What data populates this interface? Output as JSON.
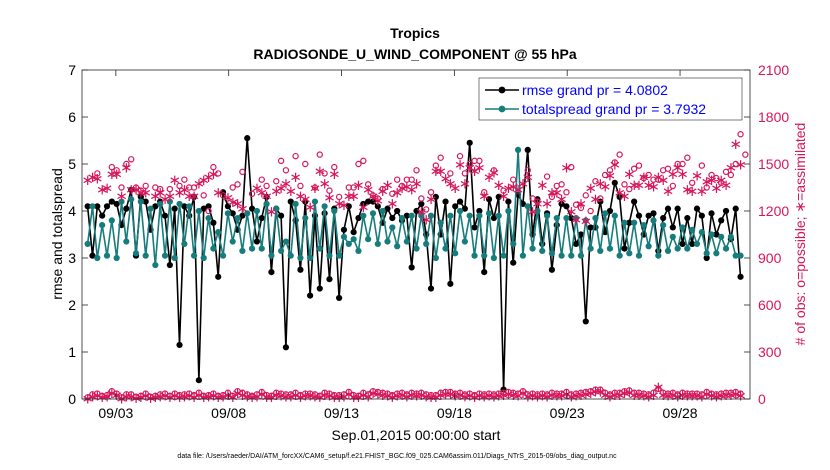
{
  "chart_data": {
    "type": "line",
    "title": "Tropics",
    "subtitle": "RADIOSONDE_U_WIND_COMPONENT @ 55 hPa",
    "xlabel": "Sep.01,2015 00:00:00 start",
    "ylabel_left": "rmse and totalspread",
    "ylabel_right": "# of obs: o=possible; ∗=assimilated",
    "ylim_left": [
      0,
      7
    ],
    "yticks_left": [
      "0",
      "1",
      "2",
      "3",
      "4",
      "5",
      "6",
      "7"
    ],
    "ylim_right": [
      0,
      2100
    ],
    "yticks_right": [
      "0",
      "300",
      "600",
      "900",
      "1200",
      "1500",
      "1800",
      "2100"
    ],
    "xlim": [
      1.5,
      31.1
    ],
    "xticks": [
      {
        "day": 3,
        "label": "09/03"
      },
      {
        "day": 8,
        "label": "09/08"
      },
      {
        "day": 13,
        "label": "09/13"
      },
      {
        "day": 18,
        "label": "09/18"
      },
      {
        "day": 23,
        "label": "09/23"
      },
      {
        "day": 28,
        "label": "09/28"
      }
    ],
    "grid": false,
    "legend_position": "top-right",
    "series": [
      {
        "name": "rmse grand pr = 4.0802",
        "axis": "left",
        "color": "#000000",
        "values": [
          4.1,
          3.05,
          4.1,
          3.9,
          4.1,
          4.2,
          4.15,
          3.7,
          4.05,
          4.45,
          3.05,
          4.3,
          4.2,
          3.6,
          4.1,
          4.2,
          3.9,
          2.85,
          4.05,
          1.15,
          4.1,
          3.9,
          4.3,
          0.4,
          4.05,
          4.1,
          3.75,
          2.6,
          4.4,
          4.1,
          3.95,
          3.6,
          3.9,
          5.55,
          4.05,
          3.35,
          3.85,
          4.3,
          2.7,
          4.05,
          3.9,
          1.1,
          4.2,
          3.8,
          2.75,
          4.2,
          2.2,
          3.9,
          2.35,
          3.95,
          2.55,
          4.05,
          2.15,
          3.6,
          4.1,
          3.55,
          3.85,
          4.15,
          4.2,
          4.2,
          4.1,
          3.75,
          4.05,
          3.85,
          4.0,
          3.8,
          3.9,
          2.8,
          4.0,
          4.15,
          3.5,
          2.35,
          4.3,
          3.5,
          4.2,
          2.45,
          4.1,
          4.2,
          4.05,
          5.45,
          3.65,
          4.0,
          2.7,
          4.25,
          3.85,
          4.3,
          0.2,
          4.2,
          2.9,
          4.35,
          4.15,
          5.3,
          3.5,
          4.25,
          3.3,
          3.95,
          2.75,
          3.7,
          4.15,
          4.1,
          3.85,
          3.3,
          3.5,
          1.65,
          3.65,
          3.65,
          4.2,
          3.55,
          4.0,
          4.6,
          4.3,
          3.2,
          3.75,
          4.2,
          3.9,
          3.5,
          3.9,
          3.95,
          3.15,
          3.85,
          4.05,
          3.65,
          4.05,
          3.3,
          3.85,
          3.3,
          4.05,
          3.9,
          3.0,
          3.95,
          3.5,
          3.8,
          4.0,
          3.4,
          4.05,
          2.6
        ],
        "marker": "o"
      },
      {
        "name": "totalspread grand pr = 3.7932",
        "axis": "left",
        "color": "#167c7c",
        "values": [
          3.3,
          4.1,
          3.0,
          3.7,
          3.05,
          3.8,
          3.0,
          4.2,
          3.35,
          4.25,
          3.1,
          4.2,
          3.05,
          4.05,
          2.85,
          4.15,
          3.05,
          4.2,
          3.0,
          4.15,
          3.3,
          4.1,
          3.05,
          4.0,
          3.0,
          3.85,
          3.2,
          3.55,
          3.05,
          3.95,
          3.35,
          3.85,
          3.15,
          3.95,
          3.2,
          4.0,
          3.2,
          4.15,
          3.05,
          4.05,
          3.15,
          3.35,
          3.05,
          4.15,
          3.0,
          3.85,
          3.0,
          4.2,
          3.2,
          4.1,
          3.05,
          4.0,
          3.05,
          3.45,
          3.3,
          3.4,
          3.15,
          3.9,
          3.4,
          3.95,
          3.3,
          4.0,
          3.35,
          3.65,
          3.25,
          3.85,
          3.35,
          3.9,
          3.2,
          3.9,
          3.3,
          3.9,
          3.0,
          3.75,
          3.2,
          3.9,
          3.1,
          4.0,
          3.35,
          3.9,
          3.05,
          3.9,
          3.05,
          3.95,
          3.0,
          3.9,
          3.05,
          4.0,
          3.3,
          5.3,
          3.05,
          4.1,
          3.2,
          4.0,
          3.15,
          3.9,
          3.1,
          3.85,
          3.05,
          3.85,
          3.05,
          3.85,
          3.05,
          3.8,
          3.2,
          3.85,
          3.15,
          3.95,
          3.2,
          3.9,
          3.05,
          3.75,
          3.1,
          3.75,
          3.05,
          3.7,
          3.25,
          3.8,
          3.05,
          3.7,
          3.15,
          3.45,
          3.2,
          3.65,
          3.2,
          3.6,
          3.3,
          3.55,
          3.1,
          3.5,
          3.1,
          3.45,
          3.2,
          3.45,
          3.05,
          3.05
        ],
        "marker": "o"
      },
      {
        "name": "possible",
        "axis": "right",
        "color": "#d6175c",
        "values": [
          null,
          null,
          1440,
          null,
          null,
          1480,
          1460,
          1350,
          1500,
          1530,
          1350,
          1330,
          1360,
          null,
          1350,
          1340,
          null,
          1340,
          null,
          1360,
          1400,
          1350,
          1350,
          null,
          1300,
          1200,
          1480,
          1440,
          1300,
          null,
          1350,
          1370,
          1450,
          null,
          1310,
          null,
          1400,
          1360,
          null,
          1390,
          1520,
          1460,
          null,
          1550,
          1360,
          1500,
          null,
          1350,
          1560,
          1440,
          1330,
          1480,
          1290,
          null,
          1350,
          1350,
          1500,
          1520,
          1370,
          1300,
          1280,
          1340,
          null,
          1310,
          1400,
          1360,
          1400,
          1400,
          1460,
          1280,
          1210,
          1320,
          1490,
          1540,
          null,
          1440,
          null,
          1550,
          1440,
          1500,
          1520,
          1520,
          1320,
          null,
          1460,
          null,
          1330,
          null,
          1400,
          null,
          null,
          1460,
          1280,
          1260,
          null,
          1420,
          1290,
          1360,
          1370,
          1320,
          1480,
          1240,
          1220,
          1300,
          1200,
          1390,
          1280,
          1430,
          1460,
          1510,
          1560,
          1370,
          1340,
          1470,
          1490,
          1410,
          1430,
          1400,
          1400,
          1460,
          1470,
          1360,
          1500,
          1500,
          1540,
          1380,
          null,
          1490,
          1350,
          1430,
          1410,
          1380,
          1450,
          1430,
          1500,
          1690,
          1560
        ],
        "marker": "o"
      },
      {
        "name": "assimilated",
        "axis": "right",
        "color": "#d6175c",
        "values": [
          1400,
          1420,
          1410,
          1340,
          1350,
          1440,
          1440,
          1300,
          1480,
          1340,
          1340,
          1320,
          1320,
          null,
          1300,
          1320,
          1280,
          1300,
          1400,
          1320,
          1340,
          1300,
          1300,
          1380,
          1400,
          1420,
          1440,
          1320,
          null,
          1290,
          1260,
          1250,
          1220,
          null,
          null,
          1350,
          1320,
          1300,
          1200,
          1330,
          1350,
          1380,
          1330,
          1420,
          1300,
          1280,
          1230,
          1350,
          1460,
          1380,
          1290,
          1440,
          1250,
          1240,
          1300,
          1300,
          1370,
          1230,
          1340,
          1300,
          1270,
          1330,
          1370,
          1250,
          1320,
          1350,
          1360,
          1340,
          1380,
          1200,
          1150,
          1280,
          1460,
          1460,
          1410,
          1380,
          1350,
          1500,
          1380,
          1480,
          1460,
          1480,
          1300,
          1420,
          1450,
          1370,
          1300,
          1350,
          1360,
          1340,
          1380,
          1420,
          1200,
          1250,
          1370,
          1250,
          1320,
          1320,
          1280,
          1480,
          1200,
          1150,
          1250,
          1140,
          1350,
          1280,
          1380,
          1360,
          1430,
          1500,
          1320,
          1300,
          1440,
          1370,
          1370,
          1420,
          1370,
          1360,
          1420,
          1400,
          1330,
          1440,
          1480,
          1440,
          1340,
          1330,
          1430,
          1330,
          1390,
          1400,
          1350,
          1400,
          1370,
          1480,
          1630,
          1500
        ],
        "marker": "*"
      },
      {
        "name": "possible (level)",
        "axis": "right",
        "color": "#d6175c",
        "values": [
          10,
          30,
          35,
          20,
          25,
          50,
          35,
          10,
          30,
          30,
          15,
          20,
          35,
          15,
          20,
          30,
          35,
          20,
          35,
          25,
          30,
          35,
          25,
          40,
          20,
          25,
          35,
          20,
          25,
          40,
          20,
          50,
          40,
          30,
          20,
          30,
          45,
          25,
          20,
          40,
          35,
          30,
          30,
          40,
          25,
          35,
          35,
          30,
          20,
          40,
          35,
          25,
          25,
          30,
          45,
          25,
          20,
          40,
          30,
          50,
          45,
          40,
          35,
          25,
          35,
          40,
          30,
          40,
          35,
          40,
          30,
          25,
          25,
          40,
          45,
          45,
          35,
          40,
          30,
          35,
          25,
          35,
          30,
          35,
          30,
          35,
          40,
          45,
          40,
          35,
          50,
          30,
          35,
          30,
          35,
          30,
          40,
          35,
          35,
          45,
          30,
          35,
          40,
          45,
          50,
          60,
          60,
          40,
          30,
          40,
          40,
          50,
          55,
          40,
          40,
          35,
          30,
          40,
          65,
          40,
          35,
          40,
          30,
          40,
          35,
          35,
          35,
          30,
          45,
          35,
          30,
          35,
          40,
          40,
          45,
          35
        ],
        "marker": "o"
      },
      {
        "name": "assimilated (level)",
        "axis": "right",
        "color": "#d6175c",
        "values": [
          5,
          20,
          25,
          15,
          20,
          40,
          30,
          5,
          20,
          20,
          10,
          15,
          25,
          10,
          15,
          20,
          25,
          15,
          25,
          15,
          20,
          25,
          15,
          30,
          15,
          20,
          25,
          15,
          20,
          30,
          15,
          40,
          30,
          20,
          15,
          20,
          35,
          15,
          15,
          30,
          25,
          20,
          20,
          30,
          15,
          25,
          25,
          20,
          15,
          30,
          25,
          15,
          15,
          20,
          35,
          15,
          15,
          30,
          20,
          40,
          35,
          30,
          25,
          15,
          25,
          30,
          20,
          30,
          25,
          30,
          20,
          15,
          15,
          30,
          35,
          35,
          25,
          30,
          20,
          25,
          15,
          25,
          20,
          25,
          20,
          25,
          30,
          35,
          30,
          25,
          40,
          20,
          25,
          20,
          25,
          20,
          30,
          25,
          25,
          35,
          20,
          25,
          30,
          35,
          40,
          50,
          50,
          30,
          20,
          30,
          30,
          40,
          45,
          30,
          30,
          25,
          20,
          30,
          80,
          30,
          25,
          30,
          20,
          30,
          25,
          25,
          25,
          20,
          35,
          25,
          20,
          25,
          30,
          30,
          35,
          25
        ],
        "marker": "*"
      }
    ],
    "legend": [
      {
        "label": "rmse grand pr = 4.0802",
        "color": "#000000",
        "text_color": "#0000ff"
      },
      {
        "label": "totalspread grand pr = 3.7932",
        "color": "#167c7c",
        "text_color": "#0000ff"
      }
    ],
    "footnote": "data file: /Users/raeder/DAI/ATM_forcXX/CAM6_setup/f.e21.FHIST_BGC.f09_025.CAM6assim.011/Diags_NTrS_2015-09/obs_diag_output.nc"
  }
}
